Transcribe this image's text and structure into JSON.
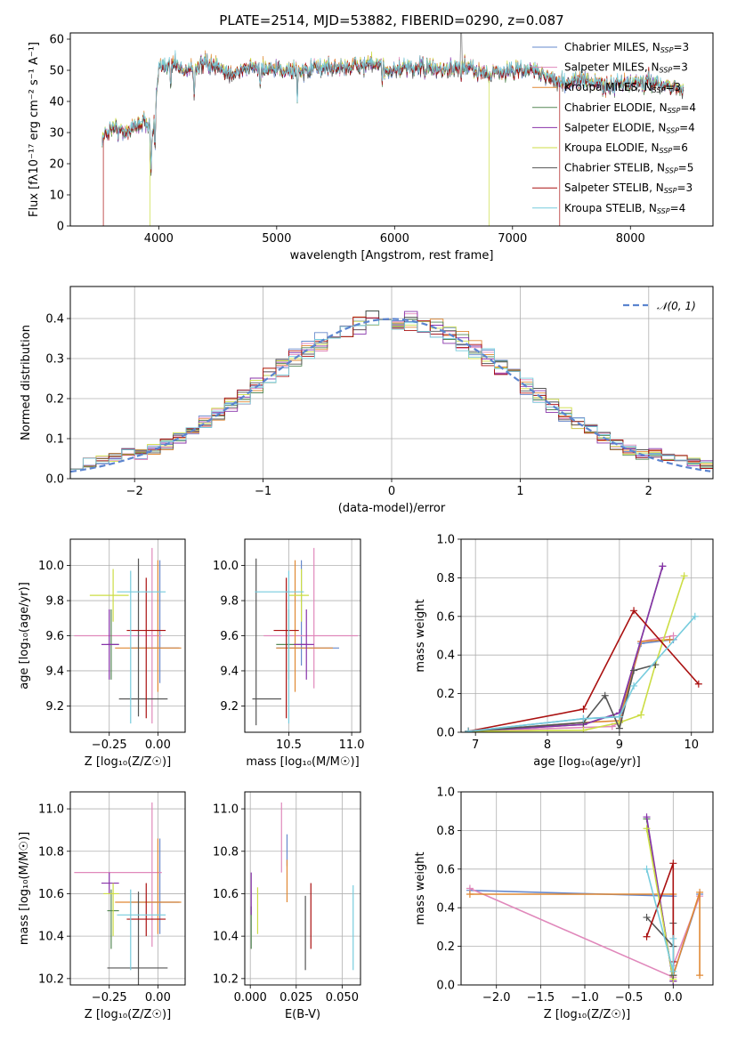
{
  "title": "PLATE=2514, MJD=53882, FIBERID=0290, z=0.087",
  "colors": {
    "Chabrier MILES": "#6688cc",
    "Salpeter MILES": "#e088bb",
    "Kroupa MILES": "#e08833",
    "Chabrier ELODIE": "#558855",
    "Salpeter ELODIE": "#8833aa",
    "Kroupa ELODIE": "#ccdd44",
    "Chabrier STELIB": "#555555",
    "Salpeter STELIB": "#aa1111",
    "Kroupa STELIB": "#77ccdd"
  },
  "chart_data": [
    {
      "id": "spectrum",
      "type": "line",
      "title": "PLATE=2514, MJD=53882, FIBERID=0290, z=0.087",
      "xlabel": "wavelength [Angstrom, rest frame]",
      "ylabel": "Flux [fλ10⁻¹⁷ erg cm⁻² s⁻¹ A⁻¹]",
      "xlim": [
        3250,
        8700
      ],
      "ylim": [
        0,
        62
      ],
      "xticks": [
        4000,
        5000,
        6000,
        7000,
        8000
      ],
      "yticks": [
        0,
        10,
        20,
        30,
        40,
        50,
        60
      ],
      "grid": false,
      "legend_position": "upper right",
      "legend": [
        {
          "name": "Chabrier MILES",
          "nssp": "3"
        },
        {
          "name": "Salpeter MILES",
          "nssp": "3"
        },
        {
          "name": "Kroupa MILES",
          "nssp": "3"
        },
        {
          "name": "Chabrier ELODIE",
          "nssp": "4"
        },
        {
          "name": "Salpeter ELODIE",
          "nssp": "4"
        },
        {
          "name": "Kroupa ELODIE",
          "nssp": "6"
        },
        {
          "name": "Chabrier STELIB",
          "nssp": "5"
        },
        {
          "name": "Salpeter STELIB",
          "nssp": "3"
        },
        {
          "name": "Kroupa STELIB",
          "nssp": "4"
        }
      ],
      "continuum_x": [
        3520,
        3600,
        3700,
        3800,
        3900,
        3950,
        4000,
        4100,
        4200,
        4400,
        4600,
        4800,
        5000,
        5200,
        5400,
        5600,
        5800,
        6000,
        6200,
        6400,
        6600,
        6800,
        7000,
        7200,
        7400,
        7600,
        7800,
        8000,
        8200,
        8450
      ],
      "continuum_y": [
        28,
        32,
        30,
        32,
        34,
        30,
        50,
        53,
        50,
        52,
        49,
        51,
        50,
        50,
        51,
        51,
        52,
        50,
        51,
        50,
        51,
        49,
        50,
        50,
        46,
        47,
        45,
        46,
        46,
        44
      ],
      "absorption_lines": [
        {
          "x": 3934,
          "depth": 14
        },
        {
          "x": 3969,
          "depth": 13
        },
        {
          "x": 4102,
          "depth": 8
        },
        {
          "x": 4300,
          "depth": 10
        },
        {
          "x": 4861,
          "depth": 6
        },
        {
          "x": 5175,
          "depth": 6
        },
        {
          "x": 5893,
          "depth": 5
        },
        {
          "x": 6563,
          "depth": 5
        }
      ],
      "glitches": [
        {
          "x": 3530,
          "series": "Salpeter STELIB"
        },
        {
          "x": 3925,
          "series": "Kroupa ELODIE"
        },
        {
          "x": 6800,
          "series": "Kroupa ELODIE"
        },
        {
          "x": 7400,
          "series": "Salpeter STELIB"
        }
      ]
    },
    {
      "id": "residuals",
      "type": "histogram",
      "xlabel": "(data-model)/error",
      "ylabel": "Normed distribution",
      "xlim": [
        -2.5,
        2.5
      ],
      "ylim": [
        0,
        0.48
      ],
      "xticks": [
        -2,
        -1,
        0,
        1,
        2
      ],
      "yticks": [
        0.0,
        0.1,
        0.2,
        0.3,
        0.4
      ],
      "grid": true,
      "bin_width": 0.1,
      "legend_position": "upper right",
      "reference_curve": {
        "name": "𝒩(0, 1)",
        "mean": 0,
        "sigma": 1
      }
    },
    {
      "id": "age-vs-Z",
      "type": "errorbar",
      "xlabel": "Z [log₁₀(Z/Z☉)]",
      "ylabel": "age  [log₁₀(age/yr)]",
      "xlim": [
        -0.45,
        0.14
      ],
      "ylim": [
        9.05,
        10.15
      ],
      "xticks": [
        -0.25,
        0.0
      ],
      "yticks": [
        9.2,
        9.4,
        9.6,
        9.8,
        10.0
      ],
      "grid": true,
      "points": [
        {
          "series": "Chabrier MILES",
          "x": 0.01,
          "xerr": [
            0.15,
            0.1
          ],
          "y": 9.53,
          "yerr": [
            0.2,
            0.5
          ]
        },
        {
          "series": "Salpeter MILES",
          "x": -0.03,
          "xerr": [
            0.4,
            0.05
          ],
          "y": 9.6,
          "yerr": [
            0.5,
            0.5
          ]
        },
        {
          "series": "Kroupa MILES",
          "x": 0.0,
          "xerr": [
            0.22,
            0.12
          ],
          "y": 9.53,
          "yerr": [
            0.25,
            0.5
          ]
        },
        {
          "series": "Chabrier ELODIE",
          "x": -0.24,
          "xerr": [
            0.02,
            0.04
          ],
          "y": 9.55,
          "yerr": [
            0.2,
            0.2
          ]
        },
        {
          "series": "Salpeter ELODIE",
          "x": -0.25,
          "xerr": [
            0.04,
            0.05
          ],
          "y": 9.55,
          "yerr": [
            0.2,
            0.2
          ]
        },
        {
          "series": "Kroupa ELODIE",
          "x": -0.23,
          "xerr": [
            0.12,
            0.08
          ],
          "y": 9.83,
          "yerr": [
            0.15,
            0.15
          ]
        },
        {
          "series": "Chabrier STELIB",
          "x": -0.1,
          "xerr": [
            0.1,
            0.15
          ],
          "y": 9.24,
          "yerr": [
            0.1,
            0.8
          ]
        },
        {
          "series": "Salpeter STELIB",
          "x": -0.06,
          "xerr": [
            0.1,
            0.1
          ],
          "y": 9.63,
          "yerr": [
            0.5,
            0.3
          ]
        },
        {
          "series": "Kroupa STELIB",
          "x": -0.14,
          "xerr": [
            0.07,
            0.18
          ],
          "y": 9.85,
          "yerr": [
            0.75,
            0.12
          ]
        }
      ]
    },
    {
      "id": "age-vs-mass",
      "type": "errorbar",
      "xlabel": "mass [log₁₀(M/M☉)]",
      "ylabel": "",
      "xlim": [
        10.15,
        11.07
      ],
      "ylim": [
        9.05,
        10.15
      ],
      "xticks": [
        10.5,
        11.0
      ],
      "yticks": [
        9.2,
        9.4,
        9.6,
        9.8,
        10.0
      ],
      "grid": true,
      "points": [
        {
          "series": "Chabrier MILES",
          "x": 10.6,
          "xerr": [
            0.2,
            0.3
          ],
          "y": 9.53,
          "yerr": [
            0.1,
            0.5
          ]
        },
        {
          "series": "Salpeter MILES",
          "x": 10.7,
          "xerr": [
            0.4,
            0.35
          ],
          "y": 9.6,
          "yerr": [
            0.3,
            0.5
          ]
        },
        {
          "series": "Kroupa MILES",
          "x": 10.55,
          "xerr": [
            0.15,
            0.3
          ],
          "y": 9.53,
          "yerr": [
            0.25,
            0.5
          ]
        },
        {
          "series": "Chabrier ELODIE",
          "x": 10.5,
          "xerr": [
            0.1,
            0.15
          ],
          "y": 9.55,
          "yerr": [
            0.2,
            0.2
          ]
        },
        {
          "series": "Salpeter ELODIE",
          "x": 10.64,
          "xerr": [
            0.1,
            0.06
          ],
          "y": 9.55,
          "yerr": [
            0.2,
            0.2
          ]
        },
        {
          "series": "Kroupa ELODIE",
          "x": 10.6,
          "xerr": [
            0.1,
            0.06
          ],
          "y": 9.83,
          "yerr": [
            0.15,
            0.15
          ]
        },
        {
          "series": "Chabrier STELIB",
          "x": 10.24,
          "xerr": [
            0.03,
            0.2
          ],
          "y": 9.24,
          "yerr": [
            0.15,
            0.8
          ]
        },
        {
          "series": "Salpeter STELIB",
          "x": 10.48,
          "xerr": [
            0.1,
            0.1
          ],
          "y": 9.63,
          "yerr": [
            0.5,
            0.3
          ]
        },
        {
          "series": "Kroupa STELIB",
          "x": 10.5,
          "xerr": [
            0.27,
            0.12
          ],
          "y": 9.85,
          "yerr": [
            0.75,
            0.12
          ]
        }
      ]
    },
    {
      "id": "weight-vs-age",
      "type": "line",
      "xlabel": "age  [log₁₀(age/yr)]",
      "ylabel": "mass weight",
      "xlim": [
        6.8,
        10.3
      ],
      "ylim": [
        0,
        1.0
      ],
      "xticks": [
        7,
        8,
        9,
        10
      ],
      "yticks": [
        0.0,
        0.2,
        0.4,
        0.6,
        0.8,
        1.0
      ],
      "grid": true,
      "series": [
        {
          "name": "Chabrier MILES",
          "x": [
            6.9,
            8.5,
            9.0,
            9.3,
            9.75
          ],
          "y": [
            0.005,
            0.07,
            0.08,
            0.46,
            0.48
          ]
        },
        {
          "name": "Salpeter MILES",
          "x": [
            6.9,
            8.9,
            9.0,
            9.3,
            9.75
          ],
          "y": [
            0.005,
            0.03,
            0.05,
            0.47,
            0.5
          ]
        },
        {
          "name": "Kroupa MILES",
          "x": [
            6.9,
            8.5,
            9.0,
            9.3,
            9.7
          ],
          "y": [
            0.005,
            0.05,
            0.06,
            0.47,
            0.48
          ]
        },
        {
          "name": "Chabrier ELODIE",
          "x": [
            6.9,
            8.5,
            9.0,
            9.6
          ],
          "y": [
            0.005,
            0.04,
            0.1,
            0.86
          ]
        },
        {
          "name": "Salpeter ELODIE",
          "x": [
            6.9,
            8.5,
            9.0,
            9.6
          ],
          "y": [
            0.005,
            0.04,
            0.1,
            0.86
          ]
        },
        {
          "name": "Kroupa ELODIE",
          "x": [
            6.9,
            8.5,
            9.0,
            9.3,
            9.5,
            9.9
          ],
          "y": [
            0.005,
            0.01,
            0.05,
            0.09,
            0.35,
            0.81
          ]
        },
        {
          "name": "Chabrier STELIB",
          "x": [
            6.9,
            8.5,
            8.8,
            9.0,
            9.2,
            9.5
          ],
          "y": [
            0.005,
            0.05,
            0.19,
            0.02,
            0.32,
            0.35
          ]
        },
        {
          "name": "Salpeter STELIB",
          "x": [
            6.9,
            8.5,
            9.2,
            10.1
          ],
          "y": [
            0.005,
            0.12,
            0.63,
            0.25
          ]
        },
        {
          "name": "Kroupa STELIB",
          "x": [
            6.9,
            8.5,
            9.0,
            9.2,
            10.05
          ],
          "y": [
            0.005,
            0.07,
            0.08,
            0.24,
            0.6
          ]
        }
      ]
    },
    {
      "id": "mass-vs-Z",
      "type": "errorbar",
      "xlabel": "Z [log₁₀(Z/Z☉)]",
      "ylabel": "mass [log₁₀(M/M☉)]",
      "xlim": [
        -0.45,
        0.14
      ],
      "ylim": [
        10.17,
        11.08
      ],
      "xticks": [
        -0.25,
        0.0
      ],
      "yticks": [
        10.2,
        10.4,
        10.6,
        10.8,
        11.0
      ],
      "grid": true,
      "points": [
        {
          "series": "Chabrier MILES",
          "x": 0.01,
          "xerr": [
            0.15,
            0.1
          ],
          "y": 10.56,
          "yerr": [
            0.15,
            0.3
          ]
        },
        {
          "series": "Salpeter MILES",
          "x": -0.03,
          "xerr": [
            0.4,
            0.05
          ],
          "y": 10.7,
          "yerr": [
            0.35,
            0.33
          ]
        },
        {
          "series": "Kroupa MILES",
          "x": 0.0,
          "xerr": [
            0.22,
            0.12
          ],
          "y": 10.56,
          "yerr": [
            0.15,
            0.3
          ]
        },
        {
          "series": "Chabrier ELODIE",
          "x": -0.24,
          "xerr": [
            0.02,
            0.04
          ],
          "y": 10.52,
          "yerr": [
            0.18,
            0.1
          ]
        },
        {
          "series": "Salpeter ELODIE",
          "x": -0.25,
          "xerr": [
            0.04,
            0.05
          ],
          "y": 10.65,
          "yerr": [
            0.05,
            0.05
          ]
        },
        {
          "series": "Kroupa ELODIE",
          "x": -0.23,
          "xerr": [
            0.05,
            0.03
          ],
          "y": 10.6,
          "yerr": [
            0.2,
            0.05
          ]
        },
        {
          "series": "Chabrier STELIB",
          "x": -0.1,
          "xerr": [
            0.16,
            0.15
          ],
          "y": 10.25,
          "yerr": [
            0.1,
            0.36
          ]
        },
        {
          "series": "Salpeter STELIB",
          "x": -0.06,
          "xerr": [
            0.1,
            0.1
          ],
          "y": 10.48,
          "yerr": [
            0.08,
            0.17
          ]
        },
        {
          "series": "Kroupa STELIB",
          "x": -0.14,
          "xerr": [
            0.07,
            0.18
          ],
          "y": 10.5,
          "yerr": [
            0.26,
            0.12
          ]
        }
      ]
    },
    {
      "id": "mass-vs-EBV",
      "type": "errorbar",
      "xlabel": "E(B-V)",
      "ylabel": "",
      "xlim": [
        -0.003,
        0.06
      ],
      "ylim": [
        10.17,
        11.08
      ],
      "xticks": [
        0.0,
        0.025,
        0.05
      ],
      "xticklabels": [
        "0.000",
        "0.025",
        "0.050"
      ],
      "yticks": [
        10.2,
        10.4,
        10.6,
        10.8,
        11.0
      ],
      "grid": true,
      "points": [
        {
          "series": "Chabrier MILES",
          "x": 0.02,
          "y": 10.78,
          "yerr": [
            0.05,
            0.1
          ]
        },
        {
          "series": "Salpeter MILES",
          "x": 0.017,
          "y": 10.86,
          "yerr": [
            0.16,
            0.17
          ]
        },
        {
          "series": "Kroupa MILES",
          "x": 0.02,
          "y": 10.66,
          "yerr": [
            0.1,
            0.1
          ]
        },
        {
          "series": "Chabrier ELODIE",
          "x": 0.0005,
          "y": 10.44,
          "yerr": [
            0.1,
            0.1
          ]
        },
        {
          "series": "Salpeter ELODIE",
          "x": 0.0005,
          "y": 10.6,
          "yerr": [
            0.1,
            0.1
          ]
        },
        {
          "series": "Kroupa ELODIE",
          "x": 0.004,
          "y": 10.52,
          "yerr": [
            0.11,
            0.11
          ]
        },
        {
          "series": "Chabrier STELIB",
          "x": 0.03,
          "y": 10.36,
          "yerr": [
            0.12,
            0.23
          ]
        },
        {
          "series": "Salpeter STELIB",
          "x": 0.033,
          "y": 10.49,
          "yerr": [
            0.15,
            0.16
          ]
        },
        {
          "series": "Kroupa STELIB",
          "x": 0.056,
          "y": 10.44,
          "yerr": [
            0.2,
            0.2
          ]
        }
      ]
    },
    {
      "id": "weight-vs-Z",
      "type": "line",
      "xlabel": "Z [log₁₀(Z/Z☉)]",
      "ylabel": "mass weight",
      "xlim": [
        -2.4,
        0.45
      ],
      "ylim": [
        0,
        1.0
      ],
      "xticks": [
        -2.0,
        -1.5,
        -1.0,
        -0.5,
        0.0
      ],
      "yticks": [
        0.0,
        0.2,
        0.4,
        0.6,
        0.8,
        1.0
      ],
      "grid": true,
      "series": [
        {
          "name": "Chabrier MILES",
          "x": [
            -2.3,
            0.0,
            0.0,
            0.3
          ],
          "y": [
            0.49,
            0.46,
            0.05,
            0.47
          ]
        },
        {
          "name": "Salpeter MILES",
          "x": [
            -2.3,
            0.0,
            0.0,
            0.3
          ],
          "y": [
            0.5,
            0.04,
            0.1,
            0.46
          ]
        },
        {
          "name": "Kroupa MILES",
          "x": [
            -2.3,
            0.0,
            0.0,
            0.3,
            0.3
          ],
          "y": [
            0.47,
            0.47,
            0.05,
            0.48,
            0.05
          ]
        },
        {
          "name": "Chabrier ELODIE",
          "x": [
            -0.3,
            0.0
          ],
          "y": [
            0.86,
            0.02
          ]
        },
        {
          "name": "Salpeter ELODIE",
          "x": [
            -0.3,
            0.0
          ],
          "y": [
            0.87,
            0.02
          ]
        },
        {
          "name": "Kroupa ELODIE",
          "x": [
            -0.3,
            0.0,
            0.0
          ],
          "y": [
            0.81,
            0.03,
            0.05
          ]
        },
        {
          "name": "Chabrier STELIB",
          "x": [
            -0.3,
            0.0,
            0.0,
            0.0
          ],
          "y": [
            0.35,
            0.2,
            0.32,
            0.05
          ]
        },
        {
          "name": "Salpeter STELIB",
          "x": [
            -0.3,
            0.0,
            0.0
          ],
          "y": [
            0.25,
            0.63,
            0.12
          ]
        },
        {
          "name": "Kroupa STELIB",
          "x": [
            -0.3,
            0.0,
            0.0
          ],
          "y": [
            0.6,
            0.07,
            0.24
          ]
        }
      ]
    }
  ]
}
